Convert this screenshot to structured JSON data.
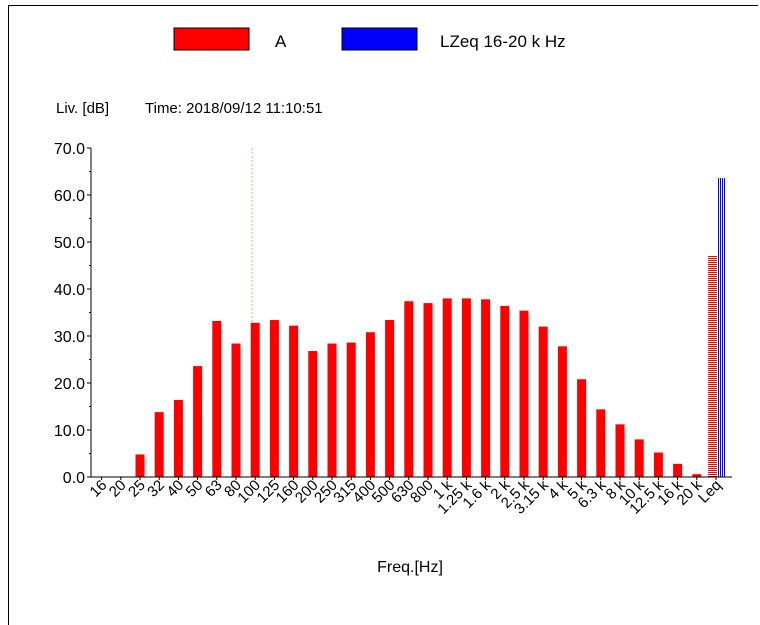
{
  "chart_data": {
    "type": "bar",
    "title": "",
    "legend": [
      {
        "name": "A",
        "color": "#ff0000"
      },
      {
        "name": "LZeq 16-20 k Hz",
        "color": "#0000ff"
      }
    ],
    "legend_position": "top",
    "ylabel": "Liv. [dB]",
    "time_label": "Time: 2018/09/12 11:10:51",
    "xlabel": "Freq.[Hz]",
    "ylim": [
      0,
      70
    ],
    "yticks": [
      "0.0",
      "10.0",
      "20.0",
      "30.0",
      "40.0",
      "50.0",
      "60.0",
      "70.0"
    ],
    "categories": [
      "16",
      "20",
      "25",
      "32",
      "40",
      "50",
      "63",
      "80",
      "100",
      "125",
      "160",
      "200",
      "250",
      "315",
      "400",
      "500",
      "630",
      "800",
      "1 k",
      "1.25 k",
      "1.6 k",
      "2 k",
      "2.5 k",
      "3.15 k",
      "4 k",
      "5 k",
      "6.3 k",
      "8 k",
      "10 k",
      "12.5 k",
      "16 k",
      "20 k",
      "Leq"
    ],
    "series": [
      {
        "name": "A",
        "color": "#ff0000",
        "values": [
          0,
          0,
          4.8,
          13.8,
          16.4,
          23.6,
          33.2,
          28.4,
          32.8,
          33.4,
          32.2,
          26.8,
          28.4,
          28.6,
          30.8,
          33.4,
          37.4,
          37.0,
          38.0,
          38.0,
          37.8,
          36.4,
          35.4,
          32.0,
          27.8,
          20.8,
          14.4,
          11.2,
          8.0,
          5.2,
          2.8,
          0.6,
          47.2
        ]
      },
      {
        "name": "LZeq 16-20 k Hz",
        "color": "#0000ff",
        "values": [
          null,
          null,
          null,
          null,
          null,
          null,
          null,
          null,
          null,
          null,
          null,
          null,
          null,
          null,
          null,
          null,
          null,
          null,
          null,
          null,
          null,
          null,
          null,
          null,
          null,
          null,
          null,
          null,
          null,
          null,
          null,
          null,
          63.6
        ]
      }
    ],
    "cursor_category": "100",
    "grid": false
  }
}
